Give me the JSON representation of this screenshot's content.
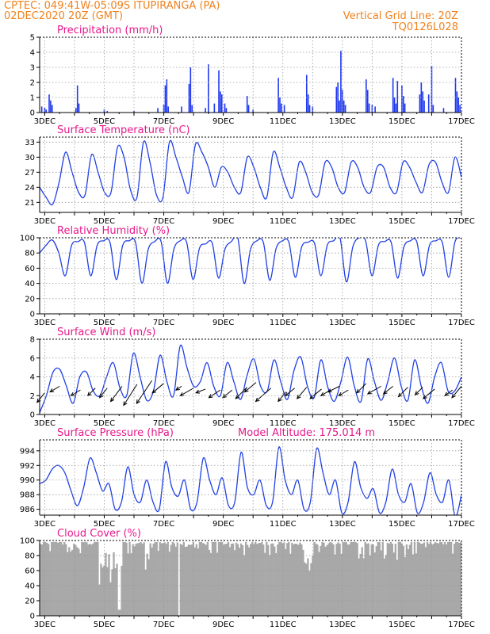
{
  "header": {
    "line1": "CPTEC:   049:41W-05:09S   ITUPIRANGA (PA)",
    "line2": "02DEC2020 20Z (GMT)",
    "grid_note": "Vertical Grid Line: 20Z",
    "code": "TQ0126L028"
  },
  "colors": {
    "line": "#2040e6",
    "bars": "#2038f0",
    "cloud": "#a8a8a8",
    "header": "#f0821e",
    "title": "#e8188c"
  },
  "x_ticks": [
    "3DEC",
    "5DEC",
    "7DEC",
    "9DEC",
    "11DEC",
    "13DEC",
    "15DEC",
    "17DEC"
  ],
  "chart_data": [
    {
      "type": "bar",
      "title": "Precipitation (mm/h)",
      "ylim": [
        0,
        5
      ],
      "yticks": [
        "0",
        "1",
        "2",
        "3",
        "4",
        "5"
      ],
      "x_range_days": [
        2.83,
        17.0
      ],
      "bars": [
        [
          2.9,
          0.4
        ],
        [
          3.0,
          0.3
        ],
        [
          3.05,
          0.2
        ],
        [
          3.15,
          1.2
        ],
        [
          3.2,
          0.8
        ],
        [
          3.25,
          0.5
        ],
        [
          4.05,
          0.3
        ],
        [
          4.1,
          1.8
        ],
        [
          4.15,
          0.6
        ],
        [
          5.0,
          0.2
        ],
        [
          5.1,
          0.1
        ],
        [
          6.0,
          0.1
        ],
        [
          6.8,
          0.3
        ],
        [
          7.0,
          0.5
        ],
        [
          7.05,
          1.8
        ],
        [
          7.1,
          2.2
        ],
        [
          7.15,
          0.4
        ],
        [
          7.6,
          0.4
        ],
        [
          7.85,
          1.9
        ],
        [
          7.9,
          3.0
        ],
        [
          7.95,
          0.5
        ],
        [
          8.4,
          0.3
        ],
        [
          8.5,
          3.2
        ],
        [
          8.7,
          0.6
        ],
        [
          8.85,
          2.8
        ],
        [
          8.9,
          1.4
        ],
        [
          8.95,
          1.2
        ],
        [
          9.05,
          0.6
        ],
        [
          9.1,
          0.3
        ],
        [
          9.8,
          1.1
        ],
        [
          9.85,
          0.5
        ],
        [
          10.0,
          0.2
        ],
        [
          10.85,
          2.3
        ],
        [
          10.9,
          1.0
        ],
        [
          10.95,
          0.6
        ],
        [
          11.05,
          0.5
        ],
        [
          11.8,
          2.5
        ],
        [
          11.85,
          1.2
        ],
        [
          11.9,
          0.5
        ],
        [
          12.0,
          0.4
        ],
        [
          12.8,
          1.7
        ],
        [
          12.85,
          2.0
        ],
        [
          12.9,
          0.8
        ],
        [
          12.95,
          4.1
        ],
        [
          13.0,
          1.5
        ],
        [
          13.05,
          0.8
        ],
        [
          13.1,
          0.5
        ],
        [
          13.8,
          2.2
        ],
        [
          13.85,
          1.5
        ],
        [
          13.9,
          0.6
        ],
        [
          14.0,
          0.5
        ],
        [
          14.1,
          0.4
        ],
        [
          14.7,
          2.3
        ],
        [
          14.75,
          1.0
        ],
        [
          14.8,
          0.6
        ],
        [
          14.85,
          2.1
        ],
        [
          15.0,
          1.8
        ],
        [
          15.05,
          1.1
        ],
        [
          15.1,
          0.6
        ],
        [
          15.6,
          1.2
        ],
        [
          15.65,
          2.0
        ],
        [
          15.7,
          1.4
        ],
        [
          15.75,
          0.8
        ],
        [
          15.9,
          1.2
        ],
        [
          16.0,
          3.1
        ],
        [
          16.05,
          0.5
        ],
        [
          16.4,
          0.3
        ],
        [
          16.8,
          2.3
        ],
        [
          16.85,
          1.4
        ],
        [
          16.9,
          1.0
        ],
        [
          16.95,
          0.5
        ]
      ]
    },
    {
      "type": "line",
      "title": "Surface Temperature (nC)",
      "ylim": [
        19,
        34
      ],
      "yticks": [
        "21",
        "24",
        "27",
        "30",
        "33"
      ],
      "series": [
        {
          "values": [
            24,
            22,
            20.6,
            25,
            31,
            27,
            23,
            22.5,
            30.5,
            27,
            23,
            23,
            32,
            30,
            23.5,
            22,
            33,
            29,
            22.5,
            22,
            33,
            30,
            26,
            23,
            32.5,
            31,
            28,
            24,
            28,
            27,
            24,
            23,
            30,
            28,
            24,
            22,
            31,
            28,
            24,
            22,
            29,
            27,
            23,
            22.5,
            29,
            28,
            24,
            23,
            29,
            28,
            24,
            23,
            28,
            28,
            24,
            23,
            29,
            28,
            25,
            23,
            28.5,
            29,
            25,
            23,
            30,
            26
          ]
        }
      ]
    },
    {
      "type": "line",
      "title": "Relative Humidity (%)",
      "ylim": [
        0,
        100
      ],
      "yticks": [
        "0",
        "20",
        "40",
        "60",
        "80",
        "100"
      ],
      "series": [
        {
          "values": [
            80,
            90,
            97,
            80,
            50,
            90,
            95,
            94,
            50,
            90,
            96,
            94,
            45,
            90,
            96,
            94,
            40,
            85,
            95,
            95,
            40,
            85,
            96,
            94,
            45,
            86,
            92,
            93,
            47,
            85,
            95,
            100,
            40,
            85,
            96,
            94,
            44,
            86,
            96,
            94,
            48,
            88,
            94,
            93,
            50,
            90,
            96,
            100,
            42,
            88,
            100,
            96,
            50,
            90,
            95,
            94,
            47,
            88,
            96,
            95,
            50,
            90,
            96,
            94,
            48,
            95,
            100
          ]
        }
      ]
    },
    {
      "type": "line",
      "title": "Surface Wind (m/s)",
      "ylim": [
        0,
        8
      ],
      "yticks": [
        "0",
        "2",
        "4",
        "6",
        "8"
      ],
      "series": [
        {
          "values": [
            0.2,
            2.0,
            4.5,
            4.8,
            3.0,
            1.2,
            4.0,
            4.5,
            2.5,
            2.0,
            4.0,
            5.5,
            2.8,
            2.0,
            6.5,
            4.0,
            1.5,
            2.5,
            6.3,
            3.5,
            2.0,
            7.3,
            5.0,
            3.0,
            3.5,
            5.5,
            3.0,
            2.0,
            5.5,
            3.5,
            1.6,
            4.2,
            5.9,
            3.0,
            2.5,
            5.8,
            3.5,
            1.6,
            4.7,
            6.1,
            3.0,
            1.8,
            5.8,
            3.0,
            1.4,
            3.5,
            6.1,
            3.0,
            1.4,
            5.9,
            3.5,
            1.5,
            3.5,
            6.0,
            3.0,
            1.5,
            5.8,
            3.0,
            1.2,
            4.0,
            5.5,
            2.5,
            2.5,
            4.0
          ]
        }
      ],
      "arrows": [
        [
          3.0,
          2.3,
          -0.4,
          -0.5
        ],
        [
          3.5,
          3.0,
          -0.5,
          -0.3
        ],
        [
          4.2,
          2.6,
          -0.5,
          -0.3
        ],
        [
          4.7,
          2.8,
          -0.4,
          -0.4
        ],
        [
          5.1,
          2.8,
          -0.4,
          -0.5
        ],
        [
          5.6,
          3.0,
          -0.6,
          -0.8
        ],
        [
          6.1,
          3.2,
          -0.7,
          -1.1
        ],
        [
          6.6,
          3.6,
          -0.8,
          -1.2
        ],
        [
          7.0,
          3.3,
          -0.6,
          -0.5
        ],
        [
          7.6,
          3.0,
          -0.3,
          -0.2
        ],
        [
          8.0,
          2.8,
          -0.7,
          -0.4
        ],
        [
          8.4,
          2.7,
          -0.5,
          -0.2
        ],
        [
          8.9,
          2.6,
          -0.6,
          -0.4
        ],
        [
          9.3,
          2.6,
          -0.5,
          -0.4
        ],
        [
          9.8,
          2.9,
          -0.6,
          -0.6
        ],
        [
          10.1,
          3.4,
          -0.6,
          -0.5
        ],
        [
          10.6,
          2.8,
          -0.8,
          -0.7
        ],
        [
          11.1,
          2.4,
          -0.4,
          -0.5
        ],
        [
          11.4,
          2.8,
          -0.5,
          -0.4
        ],
        [
          11.8,
          2.9,
          -0.5,
          -0.6
        ],
        [
          12.3,
          2.7,
          -0.6,
          -0.5
        ],
        [
          12.6,
          2.6,
          -0.5,
          -0.3
        ],
        [
          12.9,
          3.0,
          -0.6,
          -0.3
        ],
        [
          13.2,
          2.6,
          -0.5,
          -0.3
        ],
        [
          13.8,
          3.3,
          -0.5,
          -0.5
        ],
        [
          14.3,
          3.0,
          -0.7,
          -0.4
        ],
        [
          14.7,
          3.0,
          -0.5,
          -0.4
        ],
        [
          15.2,
          2.9,
          -0.5,
          -0.5
        ],
        [
          15.7,
          2.9,
          -0.4,
          -0.4
        ],
        [
          16.1,
          2.7,
          -0.6,
          -0.5
        ],
        [
          16.7,
          2.6,
          -0.4,
          -0.3
        ],
        [
          17.0,
          3.0,
          -0.5,
          -0.6
        ]
      ]
    },
    {
      "type": "line",
      "title": "Surface Pressure (hPa)",
      "subtitle": "Model Altitude: 175.014 m",
      "ylim": [
        985.2,
        995.5
      ],
      "yticks": [
        "986",
        "988",
        "990",
        "992",
        "994"
      ],
      "series": [
        {
          "values": [
            989.5,
            990,
            991.5,
            992,
            991,
            988.5,
            986.5,
            989,
            993,
            991,
            988.5,
            989.5,
            986,
            987,
            991.8,
            988,
            987,
            990,
            987,
            986,
            992.5,
            989,
            987.8,
            990,
            986,
            987,
            993,
            990,
            988,
            990.3,
            986.5,
            987,
            993.8,
            989,
            988,
            990,
            986.5,
            987,
            994.5,
            990,
            988,
            990,
            986,
            987,
            994.3,
            991,
            988,
            990,
            985.5,
            987,
            992.5,
            989,
            987.5,
            988.8,
            985.5,
            987,
            991.5,
            988,
            987,
            989.5,
            985.5,
            987,
            991,
            988,
            987,
            990,
            985,
            988
          ]
        }
      ]
    },
    {
      "type": "bar",
      "title": "Cloud Cover (%)",
      "ylim": [
        0,
        100
      ],
      "yticks": [
        "0",
        "20",
        "40",
        "60",
        "80",
        "100"
      ]
    }
  ]
}
